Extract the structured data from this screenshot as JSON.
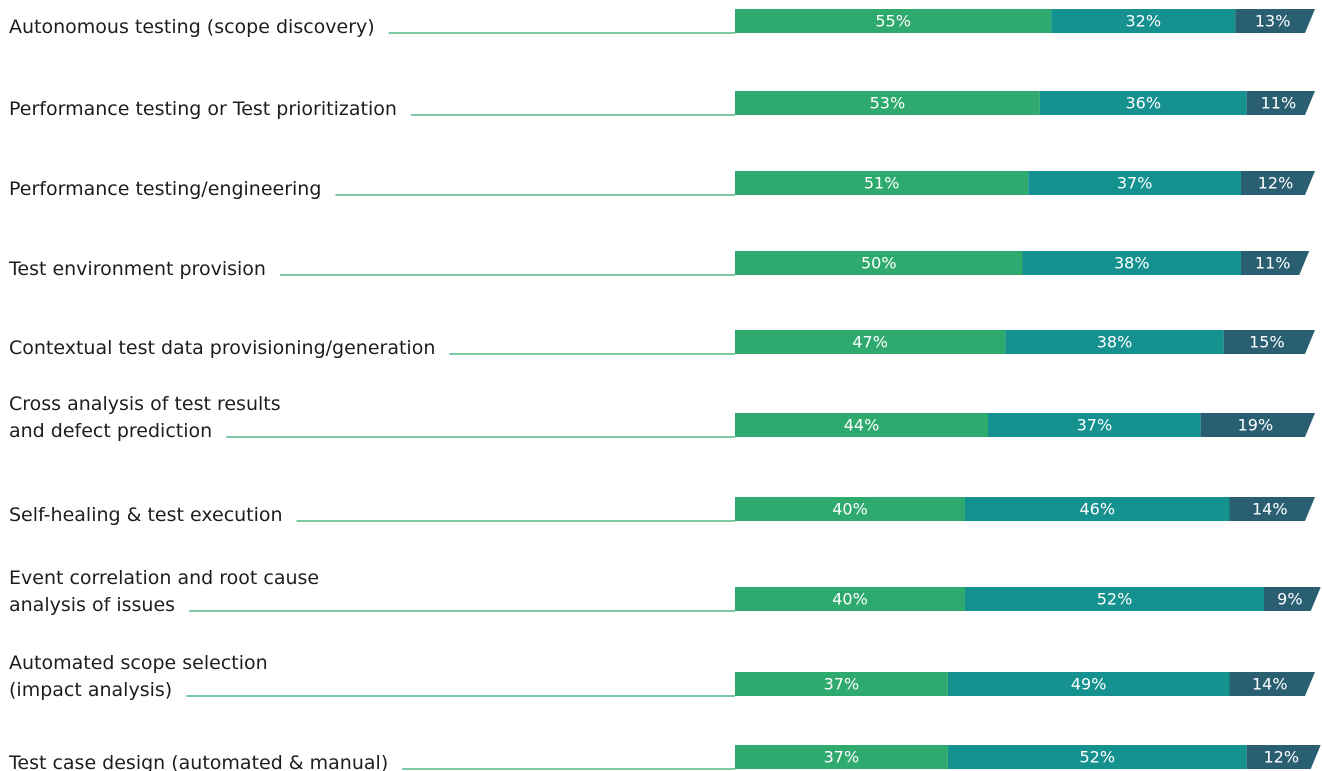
{
  "chart_data": {
    "type": "stacked-bar-horizontal",
    "categories": [
      "Autonomous testing (scope discovery)",
      "Performance testing or Test prioritization",
      "Performance testing/engineering",
      "Test environment provision",
      "Contextual test data provisioning/generation",
      "Cross analysis of test results\nand defect prediction",
      "Self-healing & test execution",
      "Event correlation and root cause\nanalysis of issues",
      "Automated scope selection\n(impact analysis)",
      "Test case design (automated & manual)"
    ],
    "series": [
      {
        "color": "#2eaa6e",
        "values": [
          55,
          53,
          51,
          50,
          47,
          44,
          40,
          40,
          37,
          37
        ],
        "value_labels": [
          "55%",
          "53%",
          "51%",
          "50%",
          "47%",
          "44%",
          "40%",
          "40%",
          "37%",
          "37%"
        ]
      },
      {
        "color": "#15918f",
        "values": [
          32,
          36,
          37,
          38,
          38,
          37,
          46,
          52,
          49,
          52
        ],
        "value_labels": [
          "32%",
          "36%",
          "37%",
          "38%",
          "38%",
          "37%",
          "46%",
          "52%",
          "49%",
          "52%"
        ]
      },
      {
        "color": "#2a5f72",
        "values": [
          13,
          11,
          12,
          11,
          15,
          19,
          14,
          9,
          14,
          12
        ],
        "value_labels": [
          "13%",
          "11%",
          "12%",
          "11%",
          "15%",
          "19%",
          "14%",
          "9%",
          "14%",
          "12%"
        ]
      }
    ]
  }
}
